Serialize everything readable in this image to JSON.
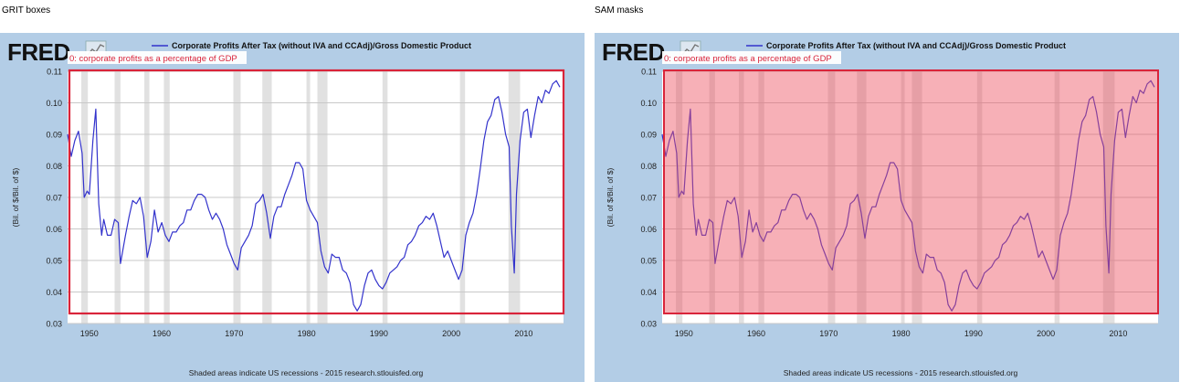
{
  "panels": [
    {
      "title": "GRIT boxes",
      "overlay": "box"
    },
    {
      "title": "SAM masks",
      "overlay": "mask"
    }
  ],
  "fred": {
    "logo": "FRED",
    "legend": "Corporate Profits After Tax (without IVA and CCAdj)/Gross Domestic Product",
    "ylabel": "(Bil. of $/Bil. of $)",
    "footer": "Shaded areas indicate US recessions - 2015 research.stlouisfed.org"
  },
  "annotation": {
    "label": "0: corporate profits as a percentage of GDP"
  },
  "colors": {
    "background": "#b3cde6",
    "plot": "#ffffff",
    "line": "#3333cc",
    "recession": "#e1e1e1",
    "box": "#d9243a",
    "mask": "rgba(238,80,96,0.45)"
  },
  "chart_data": {
    "type": "line",
    "title": "Corporate Profits After Tax (without IVA and CCAdj)/Gross Domestic Product",
    "ylabel": "(Bil. of $/Bil. of $)",
    "xlim": [
      1947,
      2015.5
    ],
    "ylim": [
      0.03,
      0.11
    ],
    "xticks": [
      1950,
      1960,
      1970,
      1980,
      1990,
      2000,
      2010
    ],
    "yticks": [
      0.03,
      0.04,
      0.05,
      0.06,
      0.07,
      0.08,
      0.09,
      0.1,
      0.11
    ],
    "grid": true,
    "recessions": [
      [
        1948.9,
        1949.8
      ],
      [
        1953.5,
        1954.3
      ],
      [
        1957.6,
        1958.3
      ],
      [
        1960.3,
        1961.1
      ],
      [
        1969.9,
        1970.9
      ],
      [
        1973.9,
        1975.2
      ],
      [
        1980.0,
        1980.5
      ],
      [
        1981.5,
        1982.9
      ],
      [
        1990.5,
        1991.2
      ],
      [
        2001.2,
        2001.9
      ],
      [
        2007.9,
        2009.5
      ]
    ],
    "series": [
      {
        "name": "Corporate Profits After Tax (without IVA and CCAdj)/Gross Domestic Product",
        "x": [
          1947.0,
          1947.5,
          1948.0,
          1948.5,
          1949.0,
          1949.3,
          1949.7,
          1950.0,
          1950.5,
          1950.9,
          1951.3,
          1951.7,
          1952.0,
          1952.5,
          1953.0,
          1953.5,
          1954.0,
          1954.3,
          1955.0,
          1955.5,
          1956.0,
          1956.5,
          1957.0,
          1957.5,
          1958.0,
          1958.5,
          1959.0,
          1959.5,
          1960.0,
          1960.5,
          1961.0,
          1961.5,
          1962.0,
          1962.5,
          1963.0,
          1963.5,
          1964.0,
          1964.5,
          1965.0,
          1965.5,
          1966.0,
          1966.5,
          1967.0,
          1967.5,
          1968.0,
          1968.5,
          1969.0,
          1969.5,
          1970.0,
          1970.5,
          1971.0,
          1971.5,
          1972.0,
          1972.5,
          1973.0,
          1973.5,
          1974.0,
          1974.5,
          1975.0,
          1975.5,
          1976.0,
          1976.5,
          1977.0,
          1977.5,
          1978.0,
          1978.5,
          1979.0,
          1979.5,
          1980.0,
          1980.5,
          1981.0,
          1981.5,
          1982.0,
          1982.5,
          1983.0,
          1983.5,
          1984.0,
          1984.5,
          1985.0,
          1985.5,
          1986.0,
          1986.5,
          1987.0,
          1987.5,
          1988.0,
          1988.5,
          1989.0,
          1989.5,
          1990.0,
          1990.5,
          1991.0,
          1991.5,
          1992.0,
          1992.5,
          1993.0,
          1993.5,
          1994.0,
          1994.5,
          1995.0,
          1995.5,
          1996.0,
          1996.5,
          1997.0,
          1997.5,
          1998.0,
          1998.5,
          1999.0,
          1999.5,
          2000.0,
          2000.5,
          2001.0,
          2001.5,
          2002.0,
          2002.5,
          2003.0,
          2003.5,
          2004.0,
          2004.5,
          2005.0,
          2005.5,
          2006.0,
          2006.5,
          2007.0,
          2007.5,
          2008.0,
          2008.3,
          2008.7,
          2009.0,
          2009.5,
          2010.0,
          2010.5,
          2011.0,
          2011.5,
          2012.0,
          2012.5,
          2013.0,
          2013.5,
          2014.0,
          2014.5,
          2015.0
        ],
        "values": [
          0.09,
          0.083,
          0.088,
          0.091,
          0.084,
          0.07,
          0.072,
          0.071,
          0.088,
          0.098,
          0.068,
          0.058,
          0.063,
          0.058,
          0.058,
          0.063,
          0.062,
          0.049,
          0.058,
          0.064,
          0.069,
          0.068,
          0.07,
          0.064,
          0.051,
          0.056,
          0.066,
          0.059,
          0.062,
          0.058,
          0.056,
          0.059,
          0.059,
          0.061,
          0.062,
          0.066,
          0.066,
          0.069,
          0.071,
          0.071,
          0.07,
          0.066,
          0.063,
          0.065,
          0.063,
          0.06,
          0.055,
          0.052,
          0.049,
          0.047,
          0.054,
          0.056,
          0.058,
          0.061,
          0.068,
          0.069,
          0.071,
          0.065,
          0.057,
          0.064,
          0.067,
          0.067,
          0.071,
          0.074,
          0.077,
          0.081,
          0.081,
          0.079,
          0.069,
          0.066,
          0.064,
          0.062,
          0.053,
          0.048,
          0.046,
          0.052,
          0.051,
          0.051,
          0.047,
          0.046,
          0.043,
          0.036,
          0.034,
          0.036,
          0.042,
          0.046,
          0.047,
          0.044,
          0.042,
          0.041,
          0.043,
          0.046,
          0.047,
          0.048,
          0.05,
          0.051,
          0.055,
          0.056,
          0.058,
          0.061,
          0.062,
          0.064,
          0.063,
          0.065,
          0.061,
          0.056,
          0.051,
          0.053,
          0.05,
          0.047,
          0.044,
          0.047,
          0.058,
          0.062,
          0.065,
          0.071,
          0.079,
          0.088,
          0.094,
          0.096,
          0.101,
          0.102,
          0.097,
          0.09,
          0.086,
          0.061,
          0.046,
          0.071,
          0.088,
          0.097,
          0.098,
          0.089,
          0.096,
          0.102,
          0.1,
          0.104,
          0.103,
          0.106,
          0.107,
          0.105
        ]
      }
    ]
  }
}
